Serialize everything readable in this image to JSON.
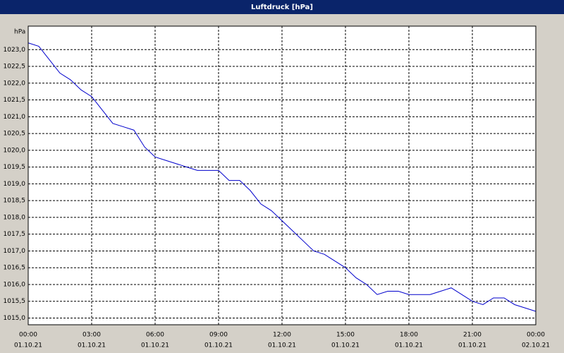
{
  "chart_data": {
    "type": "line",
    "title": "Luftdruck [hPa]",
    "y_label": "hPa",
    "x": [
      0,
      0.5,
      1,
      1.5,
      2,
      2.5,
      3,
      3.5,
      4,
      4.5,
      5,
      5.5,
      6,
      6.5,
      7,
      7.5,
      8,
      8.5,
      9,
      9.5,
      10,
      10.5,
      11,
      11.5,
      12,
      12.5,
      13,
      13.5,
      14,
      14.5,
      15,
      15.5,
      16,
      16.5,
      17,
      17.5,
      18,
      18.5,
      19,
      19.5,
      20,
      20.5,
      21,
      21.5,
      22,
      22.5,
      23,
      23.5,
      24
    ],
    "series": [
      {
        "name": "Luftdruck",
        "color": "#0000cc",
        "values": [
          1023.2,
          1023.1,
          1022.7,
          1022.3,
          1022.1,
          1021.8,
          1021.6,
          1021.2,
          1020.8,
          1020.7,
          1020.6,
          1020.1,
          1019.8,
          1019.7,
          1019.6,
          1019.5,
          1019.4,
          1019.4,
          1019.4,
          1019.1,
          1019.1,
          1018.8,
          1018.4,
          1018.2,
          1017.9,
          1017.6,
          1017.3,
          1017.0,
          1016.9,
          1016.7,
          1016.5,
          1016.2,
          1016.0,
          1015.7,
          1015.8,
          1015.8,
          1015.7,
          1015.7,
          1015.7,
          1015.8,
          1015.9,
          1015.7,
          1015.5,
          1015.4,
          1015.6,
          1015.6,
          1015.4,
          1015.3,
          1015.2
        ]
      }
    ],
    "xlim": [
      0,
      24
    ],
    "xticks": [
      {
        "value": 0,
        "label": "00:00",
        "sublabel": "01.10.21"
      },
      {
        "value": 3,
        "label": "03:00",
        "sublabel": "01.10.21"
      },
      {
        "value": 6,
        "label": "06:00",
        "sublabel": "01.10.21"
      },
      {
        "value": 9,
        "label": "09:00",
        "sublabel": "01.10.21"
      },
      {
        "value": 12,
        "label": "12:00",
        "sublabel": "01.10.21"
      },
      {
        "value": 15,
        "label": "15:00",
        "sublabel": "01.10.21"
      },
      {
        "value": 18,
        "label": "18:00",
        "sublabel": "01.10.21"
      },
      {
        "value": 21,
        "label": "21:00",
        "sublabel": "01.10.21"
      },
      {
        "value": 24,
        "label": "00:00",
        "sublabel": "02.10.21"
      }
    ],
    "ylim": [
      1014.8,
      1023.7
    ],
    "yticks": [
      {
        "value": 1015.0,
        "label": "1015,0"
      },
      {
        "value": 1015.5,
        "label": "1015,5"
      },
      {
        "value": 1016.0,
        "label": "1016,0"
      },
      {
        "value": 1016.5,
        "label": "1016,5"
      },
      {
        "value": 1017.0,
        "label": "1017,0"
      },
      {
        "value": 1017.5,
        "label": "1017,5"
      },
      {
        "value": 1018.0,
        "label": "1018,0"
      },
      {
        "value": 1018.5,
        "label": "1018,5"
      },
      {
        "value": 1019.0,
        "label": "1019,0"
      },
      {
        "value": 1019.5,
        "label": "1019,5"
      },
      {
        "value": 1020.0,
        "label": "1020,0"
      },
      {
        "value": 1020.5,
        "label": "1020,5"
      },
      {
        "value": 1021.0,
        "label": "1021,0"
      },
      {
        "value": 1021.5,
        "label": "1021,5"
      },
      {
        "value": 1022.0,
        "label": "1022,0"
      },
      {
        "value": 1022.5,
        "label": "1022,5"
      },
      {
        "value": 1023.0,
        "label": "1023,0"
      }
    ],
    "grid": true
  }
}
